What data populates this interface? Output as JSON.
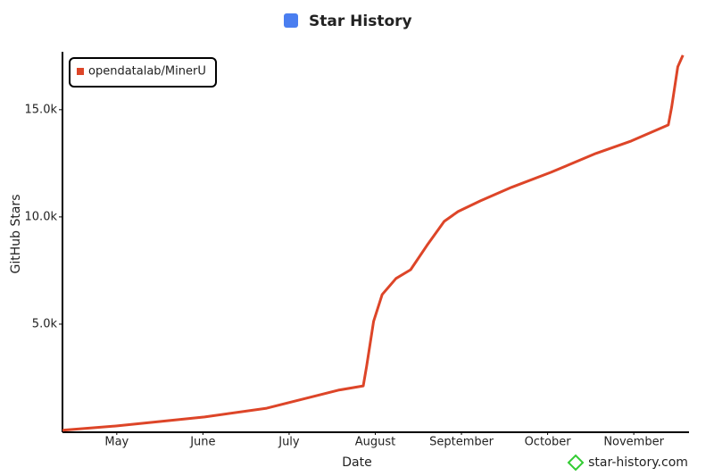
{
  "chart_data": {
    "type": "line",
    "title": "Star History",
    "x_label": "Date",
    "y_label": "GitHub Stars",
    "x": [
      4.37,
      4.99,
      6.02,
      6.74,
      7.57,
      7.86,
      7.9,
      7.98,
      8.08,
      8.24,
      8.41,
      8.6,
      8.8,
      8.96,
      9.22,
      9.58,
      10.04,
      10.56,
      10.97,
      11.4,
      11.44,
      11.51,
      11.57
    ],
    "series": [
      {
        "name": "opendatalab/MinerU",
        "color": "#dd4528",
        "values": [
          50,
          250,
          670,
          1080,
          1920,
          2120,
          3040,
          5130,
          6380,
          7130,
          7540,
          8670,
          9790,
          10250,
          10750,
          11380,
          12080,
          12960,
          13540,
          14290,
          15130,
          17000,
          17540
        ]
      }
    ],
    "xlim": [
      4.37,
      11.62
    ],
    "xticks": [
      {
        "value": 5,
        "label": "May"
      },
      {
        "value": 6,
        "label": "June"
      },
      {
        "value": 7,
        "label": "July"
      },
      {
        "value": 8,
        "label": "August"
      },
      {
        "value": 9,
        "label": "September"
      },
      {
        "value": 10,
        "label": "October"
      },
      {
        "value": 11,
        "label": "November"
      }
    ],
    "ylim": [
      0,
      17700
    ],
    "yticks": [
      {
        "value": 5000,
        "label": "5.0k"
      },
      {
        "value": 10000,
        "label": "10.0k"
      },
      {
        "value": 15000,
        "label": "15.0k"
      }
    ],
    "legend": "upper left",
    "grid": false,
    "watermark": "star-history.com"
  }
}
